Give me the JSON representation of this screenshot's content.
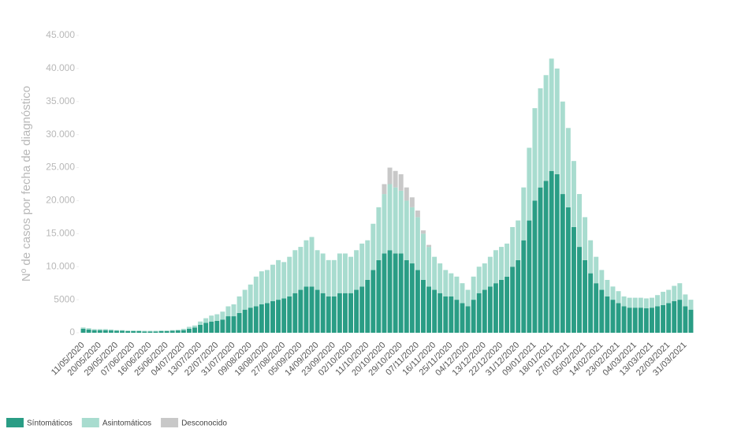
{
  "chart_data": {
    "type": "stacked-bar",
    "y_label": "Nº de casos por fecha de diagnóstico",
    "categories": [
      "11/05/2020",
      null,
      null,
      "20/05/2020",
      null,
      null,
      "29/05/2020",
      null,
      null,
      "07/06/2020",
      null,
      null,
      "16/06/2020",
      null,
      null,
      "25/06/2020",
      null,
      null,
      "04/07/2020",
      null,
      null,
      "13/07/2020",
      null,
      null,
      "22/07/2020",
      null,
      null,
      "31/07/2020",
      null,
      null,
      "09/08/2020",
      null,
      null,
      "18/08/2020",
      null,
      null,
      "27/08/2020",
      null,
      null,
      "05/09/2020",
      null,
      null,
      "14/09/2020",
      null,
      null,
      "23/09/2020",
      null,
      null,
      "02/10/2020",
      null,
      null,
      "11/10/2020",
      null,
      null,
      "20/10/2020",
      null,
      null,
      "29/10/2020",
      null,
      null,
      "07/11/2020",
      null,
      null,
      "16/11/2020",
      null,
      null,
      "25/11/2020",
      null,
      null,
      "04/12/2020",
      null,
      null,
      "13/12/2020",
      null,
      null,
      "22/12/2020",
      null,
      null,
      "31/12/2020",
      null,
      null,
      "09/01/2021",
      null,
      null,
      "18/01/2021",
      null,
      null,
      "27/01/2021",
      null,
      null,
      "05/02/2021",
      null,
      null,
      "14/02/2021",
      null,
      null,
      "23/02/2021",
      null,
      null,
      "04/03/2021",
      null,
      null,
      "13/03/2021",
      null,
      null,
      "22/03/2021",
      null,
      null,
      "31/03/2021",
      null
    ],
    "series": [
      {
        "name": "Síntomáticos",
        "color": "#2a9d85",
        "values": [
          600,
          500,
          400,
          400,
          400,
          350,
          300,
          300,
          250,
          250,
          250,
          200,
          200,
          200,
          250,
          250,
          300,
          350,
          400,
          600,
          800,
          1200,
          1500,
          1700,
          1800,
          2000,
          2500,
          2500,
          3000,
          3500,
          3800,
          4000,
          4300,
          4500,
          4800,
          5000,
          5200,
          5500,
          6000,
          6500,
          7000,
          7000,
          6500,
          6000,
          5500,
          5500,
          6000,
          6000,
          6000,
          6500,
          7000,
          8000,
          9500,
          11000,
          12000,
          12500,
          12000,
          12000,
          11000,
          10500,
          9500,
          8000,
          7000,
          6500,
          6000,
          5500,
          5500,
          5000,
          4500,
          4000,
          5000,
          6000,
          6500,
          7000,
          7500,
          8000,
          8500,
          10000,
          11000,
          14000,
          17000,
          20000,
          22000,
          23000,
          24500,
          24000,
          21000,
          19000,
          16000,
          13000,
          11000,
          9000,
          7500,
          6500,
          5500,
          5000,
          4500,
          4000,
          3800,
          3800,
          3800,
          3700,
          3800,
          4000,
          4200,
          4500,
          4800,
          5000,
          4000,
          3500
        ]
      },
      {
        "name": "Asintomáticos",
        "color": "#a8dccf",
        "values": [
          200,
          200,
          150,
          150,
          150,
          150,
          100,
          100,
          100,
          100,
          100,
          100,
          100,
          100,
          100,
          100,
          100,
          100,
          200,
          300,
          300,
          500,
          700,
          900,
          1000,
          1200,
          1500,
          1800,
          2500,
          3000,
          3500,
          4500,
          5000,
          5000,
          5500,
          6000,
          5500,
          6000,
          6500,
          6500,
          7000,
          7500,
          6000,
          6000,
          5500,
          5500,
          6000,
          6000,
          5500,
          6000,
          6500,
          6000,
          7000,
          8000,
          9000,
          10000,
          10000,
          9500,
          9000,
          8500,
          8000,
          7000,
          6000,
          5000,
          4500,
          4000,
          3500,
          3500,
          3000,
          2500,
          3500,
          4000,
          4000,
          4500,
          5000,
          5000,
          5000,
          6000,
          6000,
          8000,
          11000,
          14000,
          15000,
          16000,
          17000,
          16000,
          14000,
          12000,
          10000,
          8000,
          6500,
          5000,
          4000,
          3000,
          2500,
          2000,
          1800,
          1500,
          1500,
          1500,
          1500,
          1500,
          1500,
          1700,
          2000,
          2000,
          2300,
          2500,
          1800,
          1500
        ]
      },
      {
        "name": "Desconocido",
        "color": "#c8c8c8",
        "values": [
          0,
          0,
          0,
          0,
          0,
          0,
          0,
          0,
          0,
          0,
          0,
          0,
          0,
          0,
          0,
          0,
          0,
          0,
          0,
          0,
          0,
          0,
          0,
          0,
          0,
          0,
          0,
          0,
          0,
          0,
          0,
          0,
          0,
          0,
          0,
          0,
          0,
          0,
          0,
          0,
          0,
          0,
          0,
          0,
          0,
          0,
          0,
          0,
          0,
          0,
          0,
          0,
          0,
          0,
          1500,
          2500,
          2500,
          2500,
          2000,
          1500,
          1000,
          500,
          300,
          0,
          0,
          0,
          0,
          0,
          0,
          0,
          0,
          0,
          0,
          0,
          0,
          0,
          0,
          0,
          0,
          0,
          0,
          0,
          0,
          0,
          0,
          0,
          0,
          0,
          0,
          0,
          0,
          0,
          0,
          0,
          0,
          0,
          0,
          0,
          0,
          0,
          0,
          0,
          0,
          0,
          0,
          0,
          0,
          0,
          0,
          0
        ]
      }
    ],
    "ylim": [
      0,
      45000
    ],
    "yticks": [
      0,
      5000,
      {
        "value": 10000,
        "label": "10.000"
      },
      {
        "value": 15000,
        "label": "15.000"
      },
      {
        "value": 20000,
        "label": "20.000"
      },
      {
        "value": 25000,
        "label": "25.000"
      },
      {
        "value": 30000,
        "label": "30.000"
      },
      {
        "value": 35000,
        "label": "35.000"
      },
      {
        "value": 40000,
        "label": "40.000"
      },
      {
        "value": 45000,
        "label": "45.000"
      }
    ]
  }
}
